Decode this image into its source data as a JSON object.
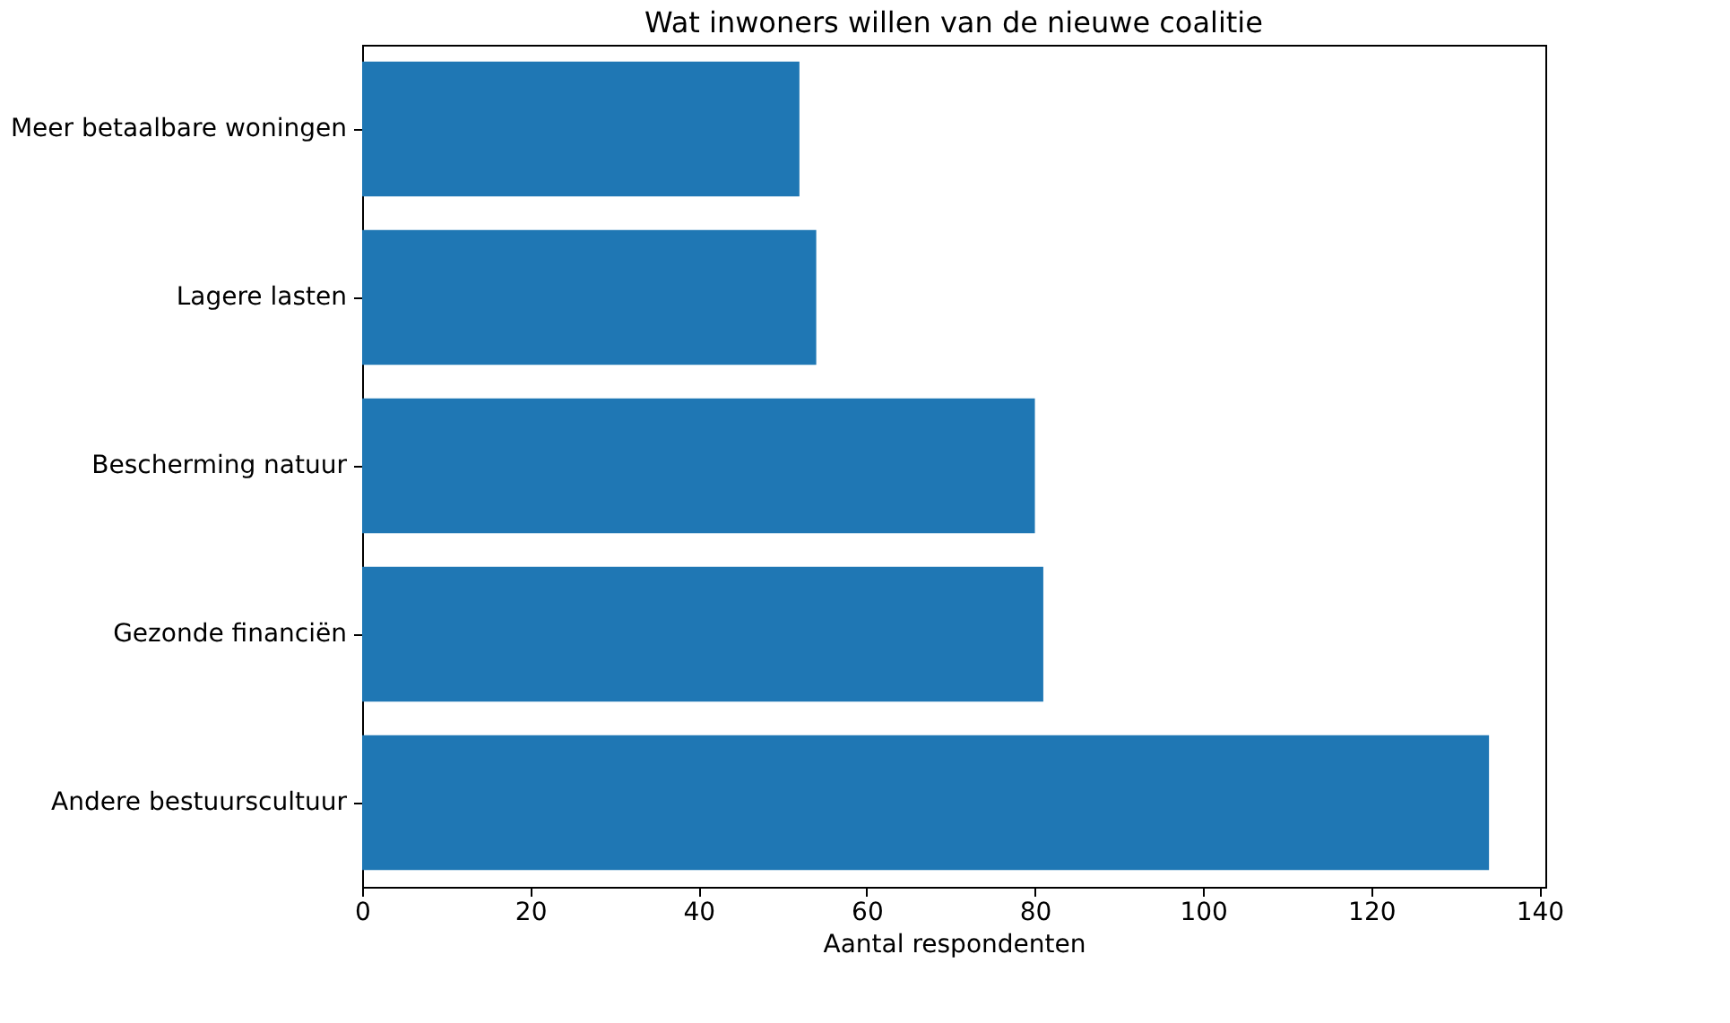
{
  "chart_data": {
    "type": "bar",
    "orientation": "horizontal",
    "title": "Wat inwoners willen van de nieuwe coalitie",
    "xlabel": "Aantal respondenten",
    "categories": [
      "Meer betaalbare woningen",
      "Lagere lasten",
      "Bescherming natuur",
      "Gezonde financiën",
      "Andere bestuurscultuur"
    ],
    "values": [
      52,
      54,
      80,
      81,
      134
    ],
    "color": "#1f77b4",
    "xlim": [
      0,
      140.7
    ],
    "xticks": [
      0,
      20,
      40,
      60,
      80,
      100,
      120,
      140
    ],
    "grid": false
  }
}
